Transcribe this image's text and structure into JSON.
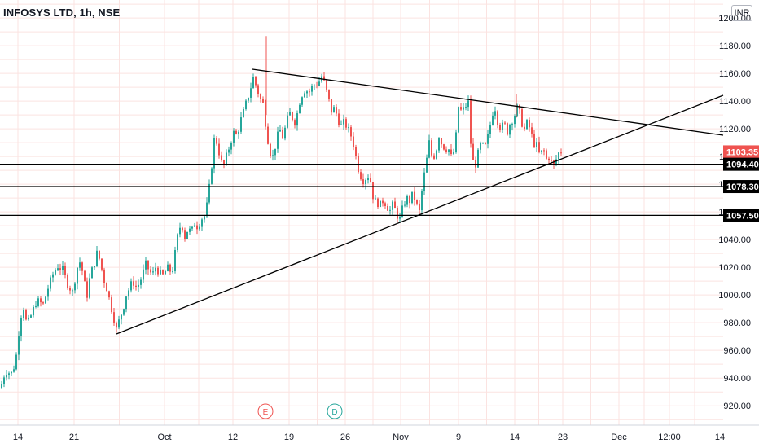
{
  "title": "INFOSYS LTD, 1h, NSE",
  "currency": "INR",
  "colors": {
    "up": "#26a69a",
    "down": "#ef5350",
    "grid": "#fbe3e1",
    "line": "#000000",
    "price_label_bg": "#ef5350",
    "level_label_bg": "#000000",
    "text": "#131722"
  },
  "markers": [
    {
      "label": "E",
      "x_label": "16",
      "color": "#ef5350"
    },
    {
      "label": "D",
      "x_label": "23",
      "color": "#26a69a"
    }
  ],
  "chart_data": {
    "type": "candlestick",
    "x_ticks": [
      "14",
      "21",
      "Oct",
      "12",
      "19",
      "26",
      "Nov",
      "9",
      "14",
      "23",
      "Dec",
      "12:00",
      "14"
    ],
    "y_ticks": [
      920,
      940,
      960,
      980,
      1000,
      1020,
      1040,
      1060,
      1080,
      1100,
      1120,
      1140,
      1160,
      1180,
      1200
    ],
    "y_tick_labels": [
      "920.00",
      "940.00",
      "960.00",
      "980.00",
      "1000.00",
      "1020.00",
      "1040.00",
      "1060.00",
      "1080.00",
      "1100.00",
      "1120.00",
      "1140.00",
      "1160.00",
      "1180.00",
      "1200.00"
    ],
    "ylim": [
      906,
      1213
    ],
    "current_price": 1103.35,
    "current_price_label": "1103.35",
    "horizontal_levels": [
      {
        "value": 1094.4,
        "label": "1094.40"
      },
      {
        "value": 1078.3,
        "label": "1078.30"
      },
      {
        "value": 1057.5,
        "label": "1057.50"
      }
    ],
    "trendlines": [
      {
        "from": {
          "x": "Sep 26",
          "y": 971
        },
        "to": {
          "x": "Dec 14",
          "y": 1146
        }
      },
      {
        "from": {
          "x": "Oct 15",
          "y": 1167
        },
        "to": {
          "x": "Dec 14",
          "y": 1118
        }
      }
    ],
    "price_path": [
      [
        0,
        933
      ],
      [
        3,
        941
      ],
      [
        8,
        946
      ],
      [
        12,
        942
      ],
      [
        18,
        951
      ],
      [
        24,
        984
      ],
      [
        28,
        991
      ],
      [
        32,
        978
      ],
      [
        37,
        985
      ],
      [
        44,
        996
      ],
      [
        52,
        993
      ],
      [
        58,
        1005
      ],
      [
        64,
        1015
      ],
      [
        70,
        1021
      ],
      [
        76,
        1018
      ],
      [
        82,
        1008
      ],
      [
        88,
        1002
      ],
      [
        94,
        1020
      ],
      [
        98,
        1025
      ],
      [
        102,
        1010
      ],
      [
        106,
        1000
      ],
      [
        110,
        1015
      ],
      [
        114,
        1021
      ],
      [
        118,
        1030
      ],
      [
        122,
        1025
      ],
      [
        126,
        1012
      ],
      [
        130,
        1005
      ],
      [
        134,
        995
      ],
      [
        138,
        985
      ],
      [
        142,
        975
      ],
      [
        146,
        983
      ],
      [
        150,
        990
      ],
      [
        154,
        1000
      ],
      [
        158,
        1005
      ],
      [
        162,
        1010
      ],
      [
        166,
        1006
      ],
      [
        170,
        1008
      ],
      [
        174,
        1015
      ],
      [
        178,
        1022
      ],
      [
        182,
        1018
      ],
      [
        186,
        1014
      ],
      [
        190,
        1020
      ],
      [
        194,
        1017
      ],
      [
        198,
        1013
      ],
      [
        202,
        1017
      ],
      [
        206,
        1020
      ],
      [
        210,
        1015
      ],
      [
        214,
        1030
      ],
      [
        218,
        1046
      ],
      [
        222,
        1052
      ],
      [
        226,
        1042
      ],
      [
        230,
        1048
      ],
      [
        234,
        1045
      ],
      [
        238,
        1052
      ],
      [
        242,
        1049
      ],
      [
        246,
        1055
      ],
      [
        250,
        1057
      ],
      [
        254,
        1067
      ],
      [
        258,
        1088
      ],
      [
        262,
        1112
      ],
      [
        266,
        1110
      ],
      [
        270,
        1096
      ],
      [
        274,
        1094
      ],
      [
        278,
        1102
      ],
      [
        282,
        1110
      ],
      [
        286,
        1117
      ],
      [
        290,
        1115
      ],
      [
        294,
        1125
      ],
      [
        298,
        1132
      ],
      [
        302,
        1140
      ],
      [
        306,
        1148
      ],
      [
        310,
        1157
      ],
      [
        314,
        1150
      ],
      [
        318,
        1142
      ],
      [
        322,
        1138
      ],
      [
        326,
        1120
      ],
      [
        330,
        1104
      ],
      [
        334,
        1100
      ],
      [
        338,
        1110
      ],
      [
        342,
        1120
      ],
      [
        346,
        1114
      ],
      [
        350,
        1122
      ],
      [
        354,
        1132
      ],
      [
        358,
        1128
      ],
      [
        362,
        1124
      ],
      [
        366,
        1138
      ],
      [
        370,
        1145
      ],
      [
        374,
        1149
      ],
      [
        378,
        1146
      ],
      [
        382,
        1150
      ],
      [
        386,
        1152
      ],
      [
        390,
        1153
      ],
      [
        394,
        1158
      ],
      [
        398,
        1152
      ],
      [
        402,
        1142
      ],
      [
        406,
        1133
      ],
      [
        410,
        1135
      ],
      [
        414,
        1127
      ],
      [
        418,
        1122
      ],
      [
        422,
        1125
      ],
      [
        426,
        1120
      ],
      [
        430,
        1115
      ],
      [
        434,
        1107
      ],
      [
        438,
        1093
      ],
      [
        442,
        1086
      ],
      [
        446,
        1082
      ],
      [
        450,
        1087
      ],
      [
        454,
        1082
      ],
      [
        458,
        1068
      ],
      [
        462,
        1067
      ],
      [
        466,
        1065
      ],
      [
        470,
        1069
      ],
      [
        474,
        1064
      ],
      [
        478,
        1061
      ],
      [
        482,
        1066
      ],
      [
        486,
        1058
      ],
      [
        490,
        1055
      ],
      [
        494,
        1064
      ],
      [
        498,
        1070
      ],
      [
        502,
        1068
      ],
      [
        506,
        1073
      ],
      [
        510,
        1066
      ],
      [
        514,
        1060
      ],
      [
        518,
        1080
      ],
      [
        522,
        1094
      ],
      [
        526,
        1110
      ],
      [
        530,
        1098
      ],
      [
        534,
        1103
      ],
      [
        538,
        1115
      ],
      [
        542,
        1108
      ],
      [
        546,
        1106
      ],
      [
        550,
        1105
      ],
      [
        554,
        1098
      ],
      [
        558,
        1108
      ],
      [
        562,
        1136
      ],
      [
        566,
        1132
      ],
      [
        570,
        1136
      ],
      [
        574,
        1139
      ],
      [
        578,
        1100
      ],
      [
        582,
        1092
      ],
      [
        586,
        1102
      ],
      [
        590,
        1110
      ],
      [
        594,
        1105
      ],
      [
        598,
        1114
      ],
      [
        602,
        1126
      ],
      [
        606,
        1138
      ],
      [
        610,
        1126
      ],
      [
        614,
        1120
      ],
      [
        618,
        1124
      ],
      [
        622,
        1118
      ],
      [
        626,
        1125
      ],
      [
        630,
        1128
      ],
      [
        634,
        1135
      ],
      [
        638,
        1130
      ],
      [
        642,
        1118
      ],
      [
        646,
        1124
      ],
      [
        650,
        1120
      ],
      [
        654,
        1110
      ],
      [
        658,
        1108
      ],
      [
        662,
        1100
      ],
      [
        666,
        1106
      ],
      [
        670,
        1098
      ],
      [
        674,
        1100
      ],
      [
        678,
        1092
      ],
      [
        682,
        1098
      ],
      [
        686,
        1104
      ],
      [
        690,
        1103
      ]
    ]
  }
}
